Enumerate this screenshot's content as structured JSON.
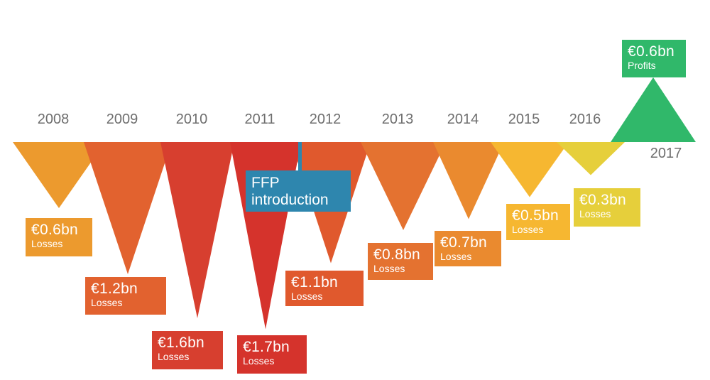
{
  "chart_data": {
    "type": "bar",
    "categories": [
      "2008",
      "2009",
      "2010",
      "2011",
      "2012",
      "2013",
      "2014",
      "2015",
      "2016",
      "2017"
    ],
    "values": [
      -0.6,
      -1.2,
      -1.6,
      -1.7,
      -1.1,
      -0.8,
      -0.7,
      -0.5,
      -0.3,
      0.6
    ],
    "value_labels": [
      "€0.6bn",
      "€1.2bn",
      "€1.6bn",
      "€1.7bn",
      "€1.1bn",
      "€0.8bn",
      "€0.7bn",
      "€0.5bn",
      "€0.3bn",
      "€0.6bn"
    ],
    "kind_labels": [
      "Losses",
      "Losses",
      "Losses",
      "Losses",
      "Losses",
      "Losses",
      "Losses",
      "Losses",
      "Losses",
      "Profits"
    ],
    "colors": [
      "#ec9a2e",
      "#e2622f",
      "#d73f2f",
      "#d5332c",
      "#e0592d",
      "#e47230",
      "#ea8a2f",
      "#f6b731",
      "#e6cf3b",
      "#30b86a"
    ],
    "annotation": "FFP introduction",
    "annotation_color": "#2e86ae"
  }
}
